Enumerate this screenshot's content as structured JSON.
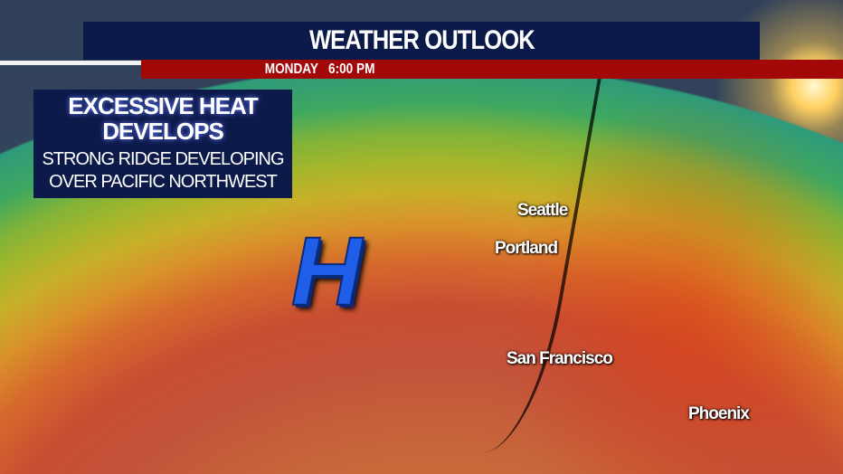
{
  "header": {
    "title": "WEATHER OUTLOOK",
    "subtitle": "MONDAY   6:00 PM"
  },
  "info_box": {
    "headline_line1": "EXCESSIVE HEAT",
    "headline_line2": "DEVELOPS",
    "desc_line1": "STRONG RIDGE DEVELOPING",
    "desc_line2": "OVER PACIFIC NORTHWEST"
  },
  "map": {
    "pressure_label": "H",
    "cities": [
      "Seattle",
      "Portland",
      "San Francisco",
      "Phoenix"
    ],
    "colors": {
      "header": "#0c1a4a",
      "subheader": "#a30808",
      "high_pressure": "#1f5ee8"
    }
  }
}
